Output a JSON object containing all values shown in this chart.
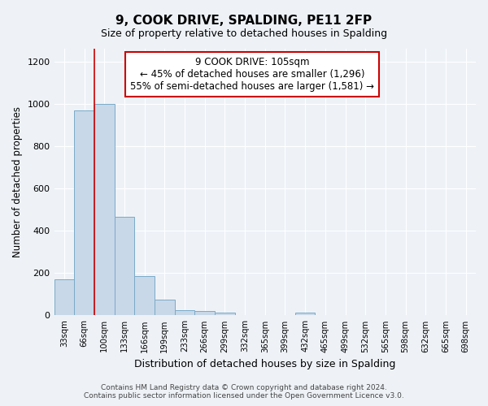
{
  "title": "9, COOK DRIVE, SPALDING, PE11 2FP",
  "subtitle": "Size of property relative to detached houses in Spalding",
  "xlabel": "Distribution of detached houses by size in Spalding",
  "ylabel": "Number of detached properties",
  "categories": [
    "33sqm",
    "66sqm",
    "100sqm",
    "133sqm",
    "166sqm",
    "199sqm",
    "233sqm",
    "266sqm",
    "299sqm",
    "332sqm",
    "365sqm",
    "399sqm",
    "432sqm",
    "465sqm",
    "499sqm",
    "532sqm",
    "565sqm",
    "598sqm",
    "632sqm",
    "665sqm",
    "698sqm"
  ],
  "values": [
    170,
    970,
    1000,
    465,
    185,
    75,
    25,
    20,
    15,
    0,
    0,
    0,
    15,
    0,
    0,
    0,
    0,
    0,
    0,
    0,
    0
  ],
  "highlight_index": 2,
  "bar_color": "#c8d8e8",
  "bar_edge_color": "#7aaac8",
  "highlight_edge_color": "#cc0000",
  "annotation_text": "9 COOK DRIVE: 105sqm\n← 45% of detached houses are smaller (1,296)\n55% of semi-detached houses are larger (1,581) →",
  "annotation_box_color": "white",
  "annotation_box_edge": "#cc0000",
  "ylim": [
    0,
    1260
  ],
  "yticks": [
    0,
    200,
    400,
    600,
    800,
    1000,
    1200
  ],
  "bg_color": "#eef2f7",
  "grid_color": "#ffffff",
  "footer1": "Contains HM Land Registry data © Crown copyright and database right 2024.",
  "footer2": "Contains public sector information licensed under the Open Government Licence v3.0."
}
